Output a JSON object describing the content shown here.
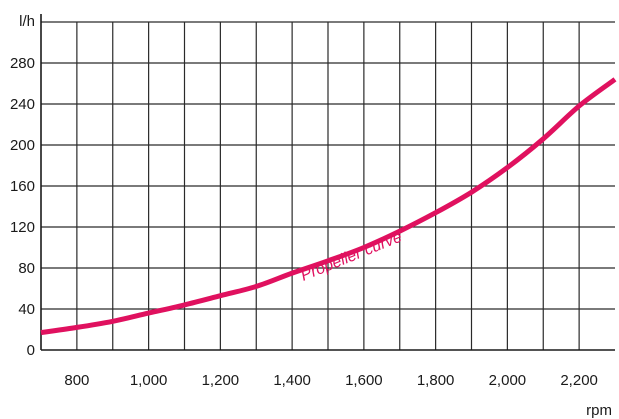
{
  "chart_data": {
    "type": "line",
    "title": "",
    "xlabel": "rpm",
    "ylabel": "l/h",
    "xlim": [
      700,
      2300
    ],
    "ylim": [
      0,
      320
    ],
    "xticks": [
      "800",
      "1,000",
      "1,200",
      "1,400",
      "1,600",
      "1,800",
      "2,000",
      "2,200"
    ],
    "xtick_values": [
      800,
      1000,
      1200,
      1400,
      1600,
      1800,
      2000,
      2200
    ],
    "yticks": [
      "0",
      "40",
      "80",
      "120",
      "160",
      "200",
      "240",
      "280"
    ],
    "ytick_values": [
      0,
      40,
      80,
      120,
      160,
      200,
      240,
      280
    ],
    "grid": true,
    "series": [
      {
        "name": "",
        "color": "#e0115f",
        "x": [
          700,
          800,
          900,
          1000,
          1100,
          1200,
          1300,
          1400,
          1500,
          1600,
          1700,
          1800,
          1900,
          2000,
          2100,
          2200,
          2300
        ],
        "y": [
          17,
          22,
          28,
          36,
          44,
          53,
          62,
          75,
          87,
          100,
          116,
          134,
          154,
          178,
          206,
          238,
          264
        ]
      }
    ],
    "annotations": [
      {
        "text": "Propeller curve",
        "x": 1570,
        "y": 87,
        "color": "#e0115f"
      }
    ]
  }
}
